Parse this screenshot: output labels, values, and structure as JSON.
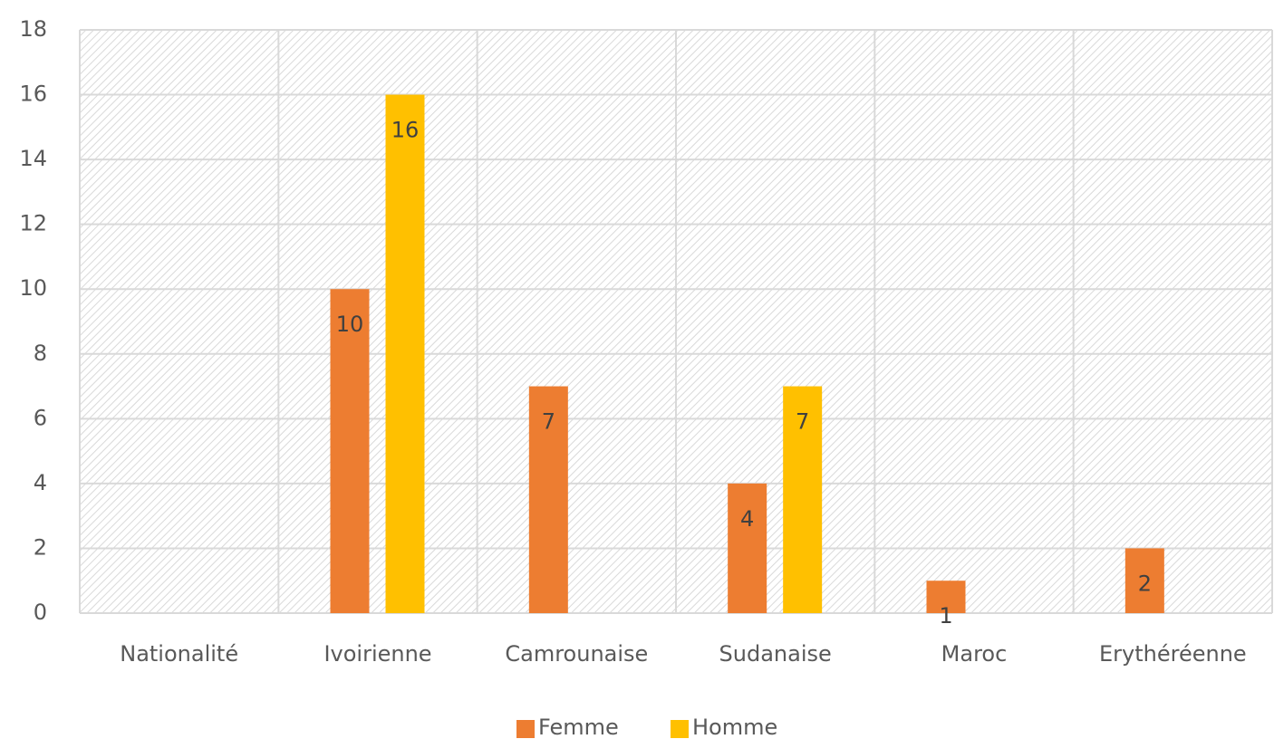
{
  "chart_data": {
    "type": "bar",
    "categories": [
      "Nationalité",
      "Ivoirienne",
      "Camrounaise",
      "Sudanaise",
      "Maroc",
      "Erythéréenne"
    ],
    "series": [
      {
        "name": "Femme",
        "color": "#ed7d31",
        "values": [
          null,
          10,
          7,
          4,
          1,
          2
        ]
      },
      {
        "name": "Homme",
        "color": "#ffc000",
        "values": [
          null,
          16,
          null,
          7,
          null,
          null
        ]
      }
    ],
    "ylim": [
      0,
      18
    ],
    "yticks": [
      0,
      2,
      4,
      6,
      8,
      10,
      12,
      14,
      16,
      18
    ],
    "grid": true,
    "legend": "bottom"
  }
}
